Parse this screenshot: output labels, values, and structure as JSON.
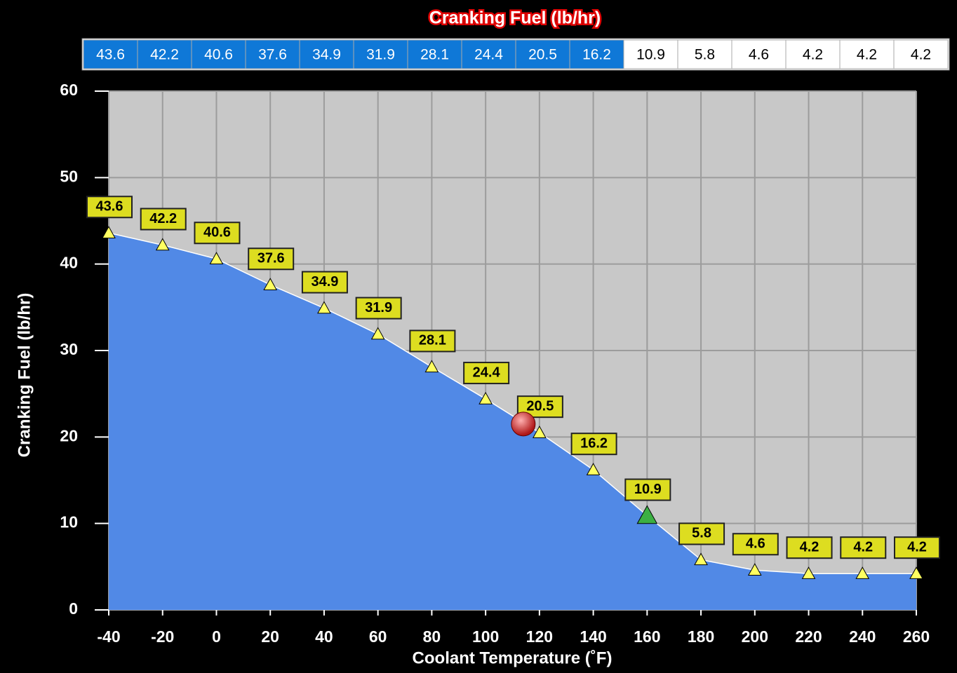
{
  "chart_data": {
    "type": "area",
    "title": "Cranking Fuel (lb/hr)",
    "x_label": "Coolant Temperature (˚F)",
    "y_label": "Cranking Fuel (lb/hr)",
    "x": [
      -40,
      -20,
      0,
      20,
      40,
      60,
      80,
      100,
      120,
      140,
      160,
      180,
      200,
      220,
      240,
      260
    ],
    "series": [
      {
        "name": "Cranking Fuel",
        "color": "#5189e6",
        "values": [
          43.6,
          42.2,
          40.6,
          37.6,
          34.9,
          31.9,
          28.1,
          24.4,
          20.5,
          16.2,
          10.9,
          5.8,
          4.6,
          4.2,
          4.2,
          4.2
        ]
      }
    ],
    "xlim": [
      -40,
      260
    ],
    "xticks": [
      -40,
      -20,
      0,
      20,
      40,
      60,
      80,
      100,
      120,
      140,
      160,
      180,
      200,
      220,
      240,
      260
    ],
    "ylim": [
      0,
      60
    ],
    "yticks": [
      0,
      10,
      20,
      30,
      40,
      50,
      60
    ],
    "grid": true,
    "selected": [
      0,
      9
    ],
    "highlight_index": 10,
    "cursor": {
      "x": 114,
      "y": 21.5
    }
  }
}
